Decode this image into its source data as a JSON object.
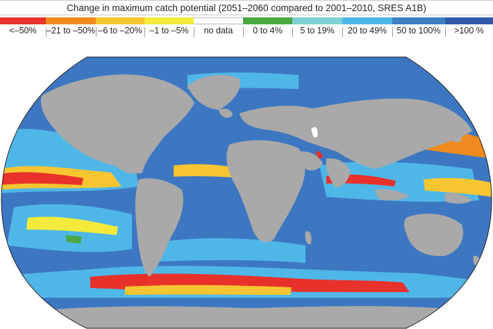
{
  "title": "Change in maximum catch potential (2051–2060 compared to 2001–2010, SRES A1B)",
  "legend": [
    {
      "label": "<–50%",
      "color": "#e8312a"
    },
    {
      "label": "–21 to –50%",
      "color": "#f08a1f"
    },
    {
      "label": "–6 to –20%",
      "color": "#f7c531"
    },
    {
      "label": "–1 to –5%",
      "color": "#f3ea3b"
    },
    {
      "label": "no data",
      "color": "#ffffff"
    },
    {
      "label": "0 to 4%",
      "color": "#4aa842"
    },
    {
      "label": "5 to 19%",
      "color": "#7fd0d2"
    },
    {
      "label": "20 to 49%",
      "color": "#4fb7e8"
    },
    {
      "label": "50 to 100%",
      "color": "#3e7fc4"
    },
    {
      "label": ">100 %",
      "color": "#2f5aa8"
    }
  ],
  "colors": {
    "land": "#a9a9a9",
    "ocean_base": "#3d77c2"
  }
}
